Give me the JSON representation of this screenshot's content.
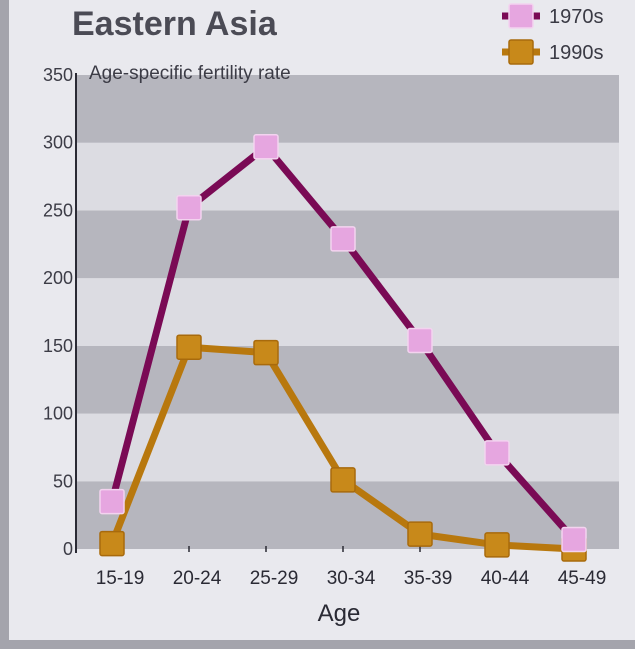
{
  "chart_data": {
    "type": "line",
    "title": "Eastern Asia",
    "ylabel": "Age-specific fertility rate",
    "xlabel": "Age",
    "categories": [
      "15-19",
      "20-24",
      "25-29",
      "30-34",
      "35-39",
      "40-44",
      "45-49"
    ],
    "ylim": [
      0,
      350
    ],
    "yticks": [
      0,
      50,
      100,
      150,
      200,
      250,
      300,
      350
    ],
    "grid": "alternating horizontal bands",
    "legend_position": "top-right",
    "series": [
      {
        "name": "1970s",
        "values": [
          35,
          252,
          297,
          229,
          154,
          71,
          7
        ],
        "color": "#7a0a55",
        "marker_color": "#e6a6e0"
      },
      {
        "name": "1990s",
        "values": [
          4,
          149,
          145,
          51,
          11,
          3,
          0
        ],
        "color": "#b8780e",
        "marker_color": "#c8891a"
      }
    ],
    "band_colors": {
      "dark": "#b6b6be",
      "light": "#dcdce2"
    }
  }
}
